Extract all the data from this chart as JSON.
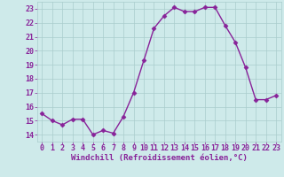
{
  "x": [
    0,
    1,
    2,
    3,
    4,
    5,
    6,
    7,
    8,
    9,
    10,
    11,
    12,
    13,
    14,
    15,
    16,
    17,
    18,
    19,
    20,
    21,
    22,
    23
  ],
  "y": [
    15.5,
    15.0,
    14.7,
    15.1,
    15.1,
    14.0,
    14.3,
    14.1,
    15.3,
    17.0,
    19.3,
    21.6,
    22.5,
    23.1,
    22.8,
    22.8,
    23.1,
    23.1,
    21.8,
    20.6,
    18.8,
    16.5,
    16.5,
    16.8
  ],
  "line_color": "#882299",
  "marker": "D",
  "markersize": 2.5,
  "linewidth": 1.0,
  "xlabel": "Windchill (Refroidissement éolien,°C)",
  "xlabel_color": "#882299",
  "xlabel_fontsize": 6.5,
  "bg_color": "#ceeaea",
  "grid_color": "#aacccc",
  "spine_color": "#aacccc",
  "tick_color": "#882299",
  "tick_fontsize": 6.0,
  "ylim": [
    13.5,
    23.5
  ],
  "xlim": [
    -0.5,
    23.5
  ],
  "yticks": [
    14,
    15,
    16,
    17,
    18,
    19,
    20,
    21,
    22,
    23
  ],
  "xticks": [
    0,
    1,
    2,
    3,
    4,
    5,
    6,
    7,
    8,
    9,
    10,
    11,
    12,
    13,
    14,
    15,
    16,
    17,
    18,
    19,
    20,
    21,
    22,
    23
  ]
}
